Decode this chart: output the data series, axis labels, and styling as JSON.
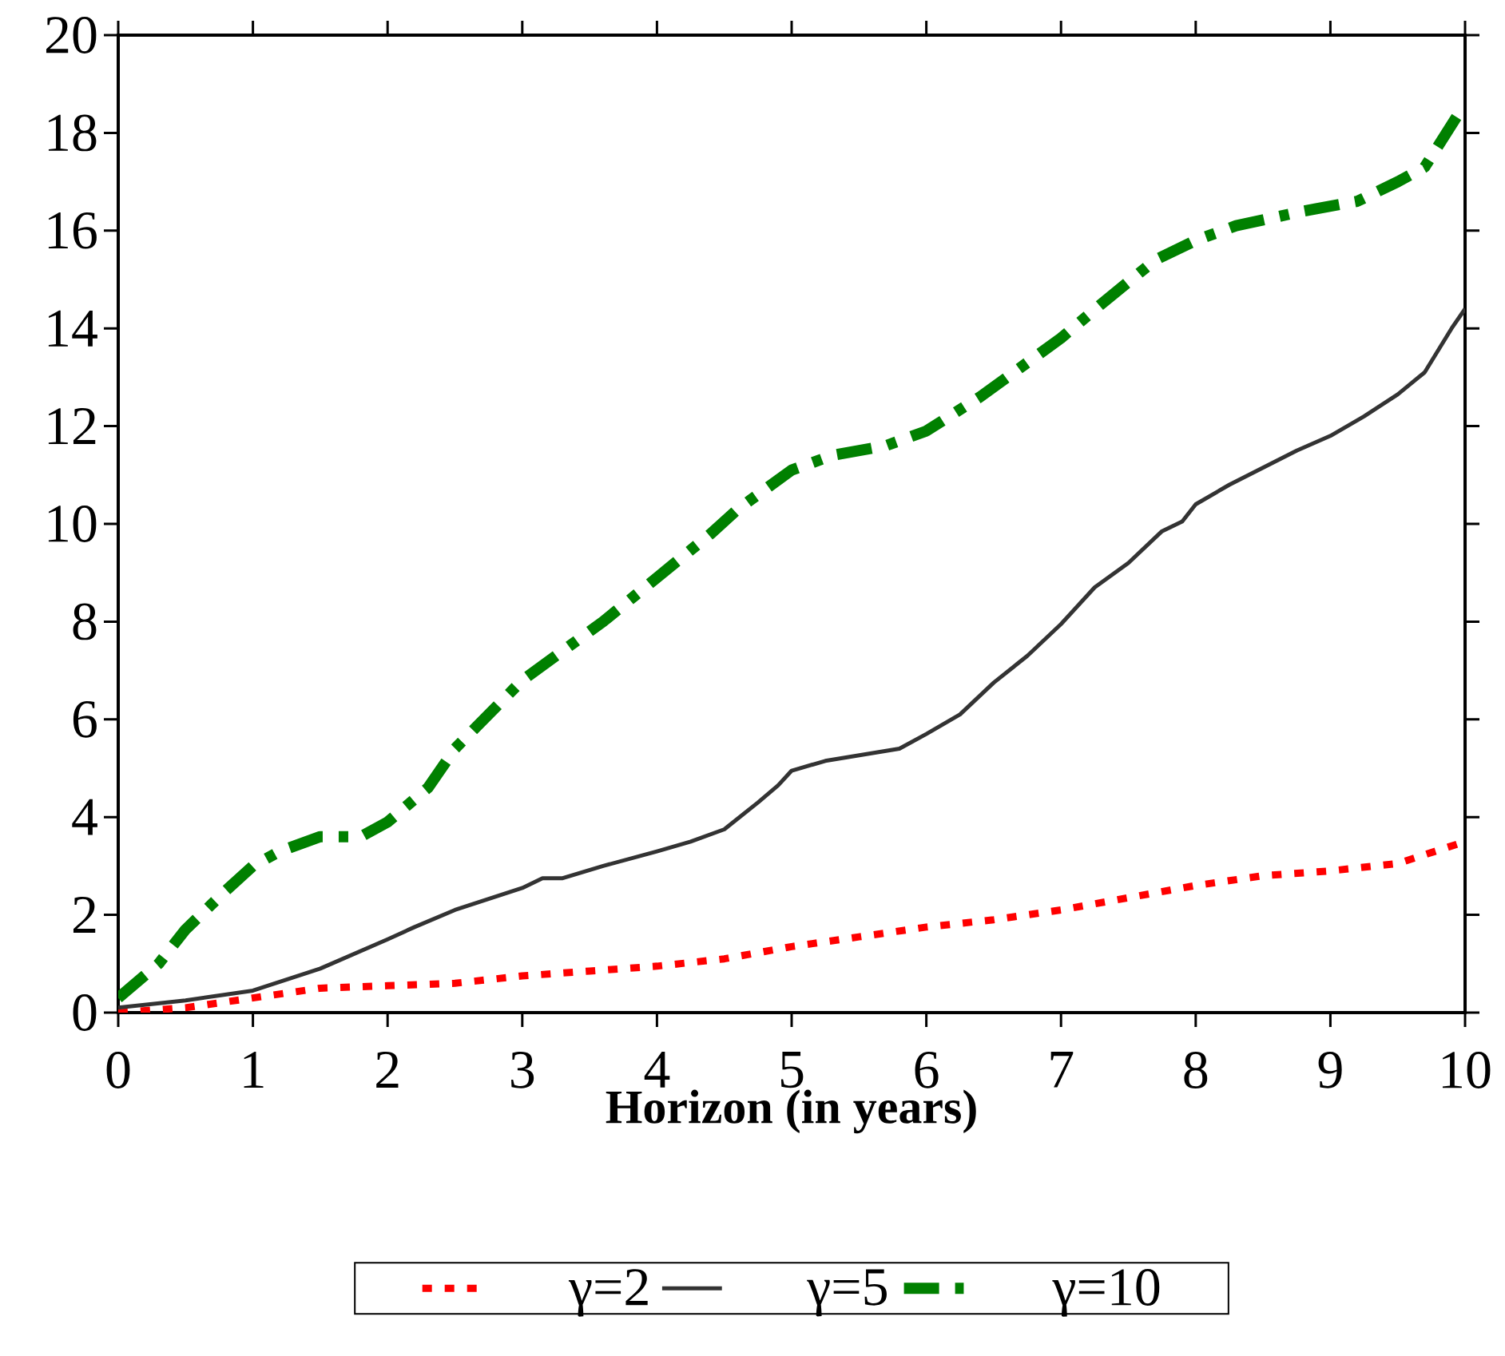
{
  "chart_data": {
    "type": "line",
    "xlabel": "**Horizon (in years)**",
    "xlim": [
      0,
      10
    ],
    "xticks": [
      0,
      1,
      2,
      3,
      4,
      5,
      6,
      7,
      8,
      9,
      10
    ],
    "ylim": [
      0,
      20
    ],
    "yticks": [
      0,
      2,
      4,
      6,
      8,
      10,
      12,
      14,
      16,
      18,
      20
    ],
    "grid": false,
    "legend": "bottom",
    "series": [
      {
        "name": "γ=2",
        "color": "#ff0000",
        "line_style": "dotted",
        "x": [
          0,
          0.5,
          1,
          1.5,
          2,
          2.5,
          3,
          3.5,
          4,
          4.5,
          5,
          5.5,
          6,
          6.5,
          7,
          7.5,
          8,
          8.5,
          9,
          9.5,
          10
        ],
        "values": [
          0,
          0.1,
          0.3,
          0.5,
          0.55,
          0.6,
          0.75,
          0.85,
          0.95,
          1.1,
          1.35,
          1.55,
          1.75,
          1.9,
          2.1,
          2.35,
          2.6,
          2.8,
          2.9,
          3.05,
          3.5
        ]
      },
      {
        "name": "γ=5",
        "color": "#333333",
        "line_style": "solid",
        "x": [
          0,
          0.5,
          1,
          1.5,
          2,
          2.2,
          2.5,
          3,
          3.15,
          3.3,
          3.6,
          4,
          4.25,
          4.5,
          4.75,
          4.9,
          5,
          5.25,
          5.8,
          6,
          6.25,
          6.5,
          6.75,
          7,
          7.25,
          7.5,
          7.75,
          7.9,
          8,
          8.25,
          8.5,
          8.75,
          9,
          9.25,
          9.5,
          9.7,
          9.9,
          10
        ],
        "values": [
          0.1,
          0.25,
          0.45,
          0.9,
          1.5,
          1.75,
          2.1,
          2.55,
          2.75,
          2.75,
          3.0,
          3.3,
          3.5,
          3.75,
          4.3,
          4.65,
          4.95,
          5.15,
          5.4,
          5.7,
          6.1,
          6.75,
          7.3,
          7.95,
          8.7,
          9.2,
          9.85,
          10.05,
          10.4,
          10.8,
          11.15,
          11.5,
          11.8,
          12.2,
          12.65,
          13.1,
          14.0,
          14.4
        ]
      },
      {
        "name": "γ=10",
        "color": "#008000",
        "line_style": "dashed",
        "x": [
          0,
          0.3,
          0.5,
          0.8,
          1,
          1.2,
          1.5,
          1.8,
          2,
          2.3,
          2.5,
          3,
          3.3,
          3.6,
          4,
          4.4,
          4.6,
          5,
          5.3,
          5.7,
          6,
          6.4,
          7,
          7.3,
          7.7,
          8,
          8.3,
          8.8,
          9.2,
          9.5,
          9.7,
          10
        ],
        "values": [
          0.3,
          1.0,
          1.7,
          2.5,
          3.0,
          3.3,
          3.6,
          3.6,
          3.9,
          4.6,
          5.4,
          6.8,
          7.4,
          8.0,
          8.9,
          9.8,
          10.3,
          11.1,
          11.4,
          11.6,
          11.9,
          12.6,
          13.8,
          14.5,
          15.4,
          15.8,
          16.1,
          16.4,
          16.6,
          17.0,
          17.3,
          18.6
        ]
      }
    ]
  }
}
